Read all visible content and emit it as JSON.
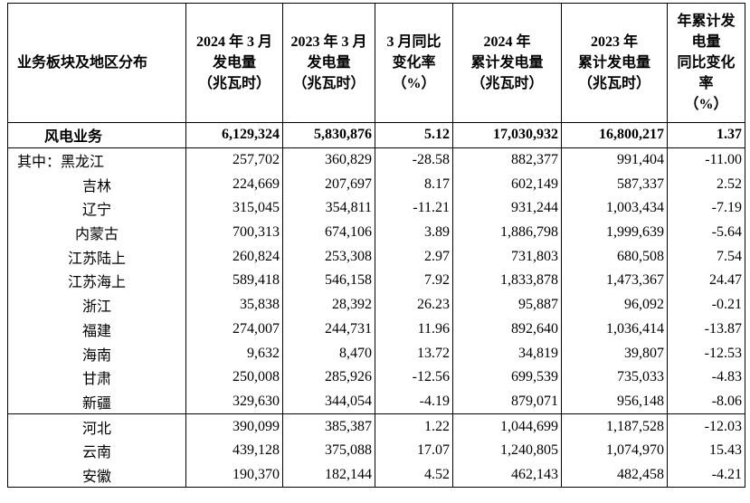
{
  "table": {
    "header": [
      "业务板块及地区分布",
      "2024 年 3 月\n发电量\n（兆瓦时）",
      "2023 年 3 月\n发电量\n（兆瓦时）",
      "3 月同比\n变化率\n（%）",
      "2024 年\n累计发电量\n（兆瓦时）",
      "2023 年\n累计发电量\n（兆瓦时）",
      "年累计发\n电量\n同比变化\n率\n（%）"
    ],
    "rows": [
      [
        "风电业务",
        "6,129,324",
        "5,830,876",
        "5.12",
        "17,030,932",
        "16,800,217",
        "1.37"
      ],
      [
        "其中：黑龙江",
        "257,702",
        "360,829",
        "-28.58",
        "882,377",
        "991,404",
        "-11.00"
      ],
      [
        "吉林",
        "224,669",
        "207,697",
        "8.17",
        "602,149",
        "587,337",
        "2.52"
      ],
      [
        "辽宁",
        "315,045",
        "354,811",
        "-11.21",
        "931,244",
        "1,003,434",
        "-7.19"
      ],
      [
        "内蒙古",
        "700,313",
        "674,106",
        "3.89",
        "1,886,798",
        "1,999,639",
        "-5.64"
      ],
      [
        "江苏陆上",
        "260,824",
        "253,308",
        "2.97",
        "731,803",
        "680,508",
        "7.54"
      ],
      [
        "江苏海上",
        "589,418",
        "546,158",
        "7.92",
        "1,833,878",
        "1,473,367",
        "24.47"
      ],
      [
        "浙江",
        "35,838",
        "28,392",
        "26.23",
        "95,887",
        "96,092",
        "-0.21"
      ],
      [
        "福建",
        "274,007",
        "244,731",
        "11.96",
        "892,640",
        "1,036,414",
        "-13.87"
      ],
      [
        "海南",
        "9,632",
        "8,470",
        "13.72",
        "34,819",
        "39,807",
        "-12.53"
      ],
      [
        "甘肃",
        "250,008",
        "285,926",
        "-12.56",
        "699,539",
        "735,033",
        "-4.83"
      ],
      [
        "新疆",
        "329,630",
        "344,054",
        "-4.19",
        "879,071",
        "956,148",
        "-8.06"
      ],
      [
        "河北",
        "390,099",
        "385,387",
        "1.22",
        "1,044,699",
        "1,187,528",
        "-12.03"
      ],
      [
        "云南",
        "439,128",
        "375,088",
        "17.07",
        "1,240,805",
        "1,074,970",
        "15.43"
      ],
      [
        "安徽",
        "190,370",
        "182,144",
        "4.52",
        "462,143",
        "482,458",
        "-4.21"
      ]
    ]
  }
}
